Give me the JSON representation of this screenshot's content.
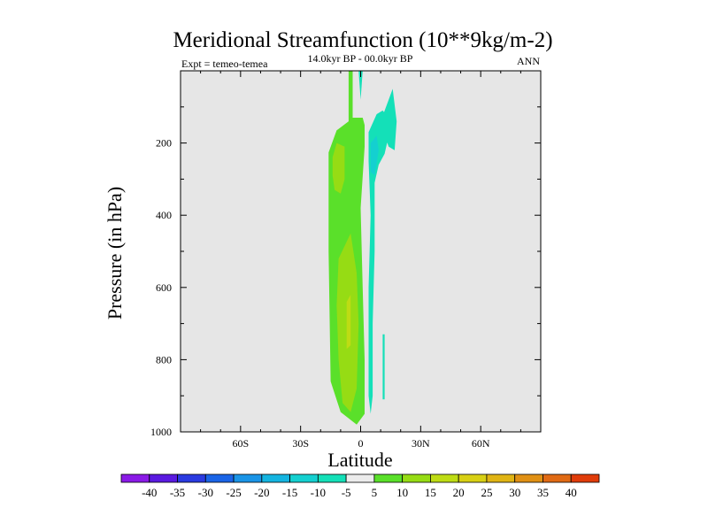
{
  "chart_data": {
    "type": "contour",
    "title": "Meridional Streamfunction (10**9kg/m-2)",
    "subtitle": "14.0kyr BP - 00.0kyr BP",
    "left_label": "Expt = temeo-temea",
    "right_label": "ANN",
    "xlabel": "Latitude",
    "ylabel": "Pressure (in hPa)",
    "xlim": [
      -90,
      90
    ],
    "ylim": [
      1000,
      0
    ],
    "xticks": [
      {
        "value": -60,
        "label": "60S"
      },
      {
        "value": -30,
        "label": "30S"
      },
      {
        "value": 0,
        "label": "0"
      },
      {
        "value": 30,
        "label": "30N"
      },
      {
        "value": 60,
        "label": "60N"
      }
    ],
    "yticks": [
      {
        "value": 200,
        "label": "200"
      },
      {
        "value": 400,
        "label": "400"
      },
      {
        "value": 600,
        "label": "600"
      },
      {
        "value": 800,
        "label": "800"
      },
      {
        "value": 1000,
        "label": "1000"
      }
    ],
    "colorbar": {
      "colors": [
        "#8a1ae6",
        "#5a1ae0",
        "#2a3ae0",
        "#1a64e6",
        "#1a94e6",
        "#14b4e0",
        "#14d0d0",
        "#14e0b8",
        "#ececec",
        "#5ae02a",
        "#96dc14",
        "#bedc14",
        "#d8d014",
        "#e0b414",
        "#e09014",
        "#e06a14",
        "#e03c0a"
      ],
      "labels": [
        "-40",
        "-35",
        "-30",
        "-25",
        "-20",
        "-15",
        "-10",
        "-5",
        "5",
        "10",
        "15",
        "20",
        "25",
        "30",
        "35",
        "40"
      ]
    },
    "regions": [
      {
        "level": "5",
        "color": "#5ae02a",
        "points": [
          [
            -16,
            226
          ],
          [
            -12,
            165
          ],
          [
            -6,
            140
          ],
          [
            -6,
            0
          ],
          [
            -4,
            0
          ],
          [
            -4,
            130
          ],
          [
            1,
            130
          ],
          [
            2,
            150
          ],
          [
            2,
            210
          ],
          [
            0,
            380
          ],
          [
            1,
            600
          ],
          [
            2,
            800
          ],
          [
            2,
            950
          ],
          [
            -2,
            980
          ],
          [
            -10,
            945
          ],
          [
            -15,
            860
          ],
          [
            -16,
            500
          ],
          [
            -16,
            300
          ]
        ]
      },
      {
        "level": "10",
        "color": "#96dc14",
        "points": [
          [
            -14,
            240
          ],
          [
            -12,
            200
          ],
          [
            -8,
            210
          ],
          [
            -8,
            300
          ],
          [
            -10,
            340
          ],
          [
            -13,
            330
          ],
          [
            -14,
            290
          ]
        ]
      },
      {
        "level": "10",
        "color": "#96dc14",
        "points": [
          [
            -11,
            520
          ],
          [
            -5,
            450
          ],
          [
            -2,
            560
          ],
          [
            -1,
            700
          ],
          [
            -2,
            880
          ],
          [
            -5,
            945
          ],
          [
            -9,
            920
          ],
          [
            -11,
            800
          ],
          [
            -12,
            650
          ]
        ]
      },
      {
        "level": "15",
        "color": "#bedc14",
        "points": [
          [
            -7,
            640
          ],
          [
            -5,
            620
          ],
          [
            -5,
            760
          ],
          [
            -7,
            770
          ]
        ]
      },
      {
        "level": "-5",
        "color": "#14e0b8",
        "points": [
          [
            4,
            170
          ],
          [
            8,
            120
          ],
          [
            11,
            110
          ],
          [
            14,
            130
          ],
          [
            14,
            180
          ],
          [
            12,
            230
          ],
          [
            9,
            260
          ],
          [
            7,
            310
          ],
          [
            7,
            500
          ],
          [
            6,
            700
          ],
          [
            6,
            900
          ],
          [
            5,
            950
          ],
          [
            4,
            900
          ],
          [
            4,
            600
          ],
          [
            5,
            400
          ],
          [
            4,
            250
          ]
        ]
      },
      {
        "level": "-5",
        "color": "#14e0b8",
        "points": [
          [
            11,
            125
          ],
          [
            14,
            80
          ],
          [
            16,
            50
          ],
          [
            18,
            140
          ],
          [
            17,
            220
          ],
          [
            14,
            210
          ],
          [
            12,
            180
          ]
        ]
      },
      {
        "level": "-5",
        "color": "#14e0b8",
        "points": [
          [
            11,
            730
          ],
          [
            12,
            730
          ],
          [
            12,
            910
          ],
          [
            11,
            910
          ]
        ]
      },
      {
        "level": "-5",
        "color": "#14e0b8",
        "points": [
          [
            -1,
            0
          ],
          [
            1,
            0
          ],
          [
            0,
            80
          ]
        ]
      },
      {
        "level": "-10",
        "color": "#14d0d0",
        "points": [
          [
            5,
            200
          ],
          [
            8,
            180
          ],
          [
            9,
            220
          ],
          [
            7,
            290
          ],
          [
            5,
            280
          ]
        ]
      }
    ]
  }
}
